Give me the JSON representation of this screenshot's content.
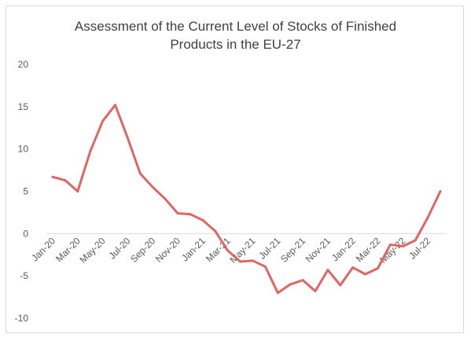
{
  "chart_data": {
    "type": "line",
    "title_lines": [
      "Assessment of the Current Level of Stocks of Finished",
      "Products in the EU-27"
    ],
    "xlabel": "",
    "ylabel": "",
    "ylim": [
      -10,
      20
    ],
    "yticks": [
      -10,
      -5,
      0,
      5,
      10,
      15,
      20
    ],
    "x_labels_shown": [
      "Jan-20",
      "Mar-20",
      "May-20",
      "Jul-20",
      "Sep-20",
      "Nov-20",
      "Jan-21",
      "Mar-21",
      "May-21",
      "Jul-21",
      "Sep-21",
      "Nov-21",
      "Jan-22",
      "Mar-22",
      "May-22",
      "Jul-22"
    ],
    "grid": false,
    "legend": "none",
    "colors": {
      "line": "#e06666",
      "axis": "#d9d9d9"
    },
    "series": [
      {
        "x": [
          "Jan-20",
          "Feb-20",
          "Mar-20",
          "Apr-20",
          "May-20",
          "Jun-20",
          "Jul-20",
          "Aug-20",
          "Sep-20",
          "Oct-20",
          "Nov-20",
          "Dec-20",
          "Jan-21",
          "Feb-21",
          "Mar-21",
          "Apr-21",
          "May-21",
          "Jun-21",
          "Jul-21",
          "Aug-21",
          "Sep-21",
          "Oct-21",
          "Nov-21",
          "Dec-21",
          "Jan-22",
          "Feb-22",
          "Mar-22",
          "Apr-22",
          "May-22",
          "Jun-22",
          "Jul-22",
          "Aug-22"
        ],
        "values": [
          6.7,
          6.3,
          5.0,
          9.7,
          13.3,
          15.2,
          11.3,
          7.1,
          5.5,
          4.1,
          2.4,
          2.3,
          1.6,
          0.3,
          -2.0,
          -3.3,
          -3.2,
          -3.9,
          -7.0,
          -6.0,
          -5.5,
          -6.8,
          -4.3,
          -6.1,
          -4.0,
          -4.8,
          -4.1,
          -1.3,
          -1.5,
          -0.8,
          1.9,
          5.0
        ]
      }
    ]
  }
}
